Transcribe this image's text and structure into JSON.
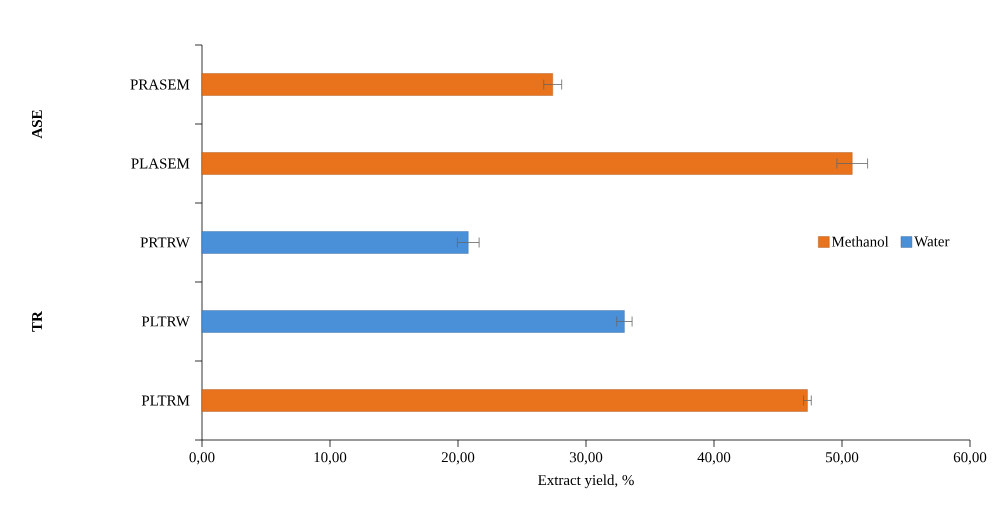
{
  "chart_data": {
    "type": "bar",
    "orientation": "horizontal",
    "xlabel": "Extract yield, %",
    "categories": [
      "PRASEM",
      "PLASEM",
      "PRTRW",
      "PLTRW",
      "PLTRM"
    ],
    "series": [
      {
        "name": "Methanol",
        "color": "#e8731c",
        "values": [
          27.4,
          50.8,
          null,
          null,
          47.3
        ],
        "errors": [
          0.7,
          1.2,
          null,
          null,
          0.3
        ]
      },
      {
        "name": "Water",
        "color": "#4a90d9",
        "values": [
          null,
          null,
          20.8,
          33.0,
          null
        ],
        "errors": [
          null,
          null,
          0.85,
          0.6,
          null
        ]
      }
    ],
    "xlim": [
      0,
      60
    ],
    "xticks": [
      {
        "value": 0,
        "label": "0,00"
      },
      {
        "value": 10,
        "label": "10,00"
      },
      {
        "value": 20,
        "label": "20,00"
      },
      {
        "value": 30,
        "label": "30,00"
      },
      {
        "value": 40,
        "label": "40,00"
      },
      {
        "value": 50,
        "label": "50,00"
      },
      {
        "value": 60,
        "label": "60,00"
      }
    ],
    "annotations": [
      "ASE",
      "TR"
    ],
    "legend": "right"
  }
}
